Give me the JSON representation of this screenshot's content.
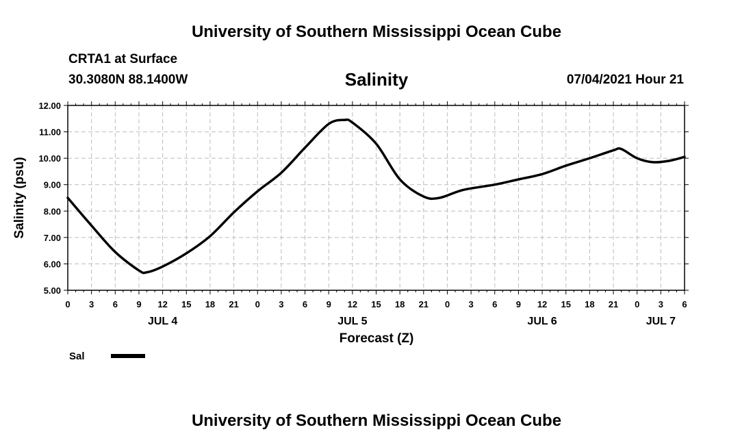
{
  "header": {
    "title": "University of Southern Mississippi Ocean Cube",
    "station": "CRTA1 at Surface",
    "coords": "30.3080N  88.1400W",
    "variable": "Salinity",
    "datetime": "07/04/2021 Hour 21"
  },
  "footer": {
    "title": "University of Southern Mississippi Ocean Cube"
  },
  "chart_data": {
    "type": "line",
    "title": "Salinity",
    "xlabel": "Forecast (Z)",
    "ylabel": "Salinity (psu)",
    "ylim": [
      5,
      12
    ],
    "xlim": [
      0,
      78
    ],
    "x_unit": "hours since JUL 4 00Z",
    "y_ticks": [
      "5.00",
      "6.00",
      "7.00",
      "8.00",
      "9.00",
      "10.00",
      "11.00",
      "12.00"
    ],
    "x_tick_labels": [
      "0",
      "3",
      "6",
      "9",
      "12",
      "15",
      "18",
      "21",
      "0",
      "3",
      "6",
      "9",
      "12",
      "15",
      "18",
      "21",
      "0",
      "3",
      "6",
      "9",
      "12",
      "15",
      "18",
      "21",
      "0",
      "3",
      "6"
    ],
    "day_labels": [
      {
        "label": "JUL 4",
        "hour": 12
      },
      {
        "label": "JUL 5",
        "hour": 36
      },
      {
        "label": "JUL 6",
        "hour": 60
      },
      {
        "label": "JUL 7",
        "hour": 75
      }
    ],
    "grid": true,
    "legend": "bottom-left",
    "series": [
      {
        "name": "Sal",
        "color": "#000000",
        "x": [
          0,
          3,
          6,
          9,
          10,
          12,
          15,
          18,
          21,
          24,
          27,
          30,
          33,
          35,
          36,
          39,
          42,
          45,
          47,
          50,
          54,
          57,
          60,
          63,
          66,
          69,
          70,
          72,
          74,
          76,
          78
        ],
        "y": [
          8.5,
          7.45,
          6.45,
          5.75,
          5.68,
          5.9,
          6.4,
          7.05,
          7.95,
          8.75,
          9.45,
          10.4,
          11.3,
          11.45,
          11.35,
          10.55,
          9.2,
          8.55,
          8.5,
          8.8,
          9.0,
          9.2,
          9.4,
          9.72,
          10.0,
          10.3,
          10.35,
          10.0,
          9.85,
          9.9,
          10.05
        ]
      }
    ]
  }
}
